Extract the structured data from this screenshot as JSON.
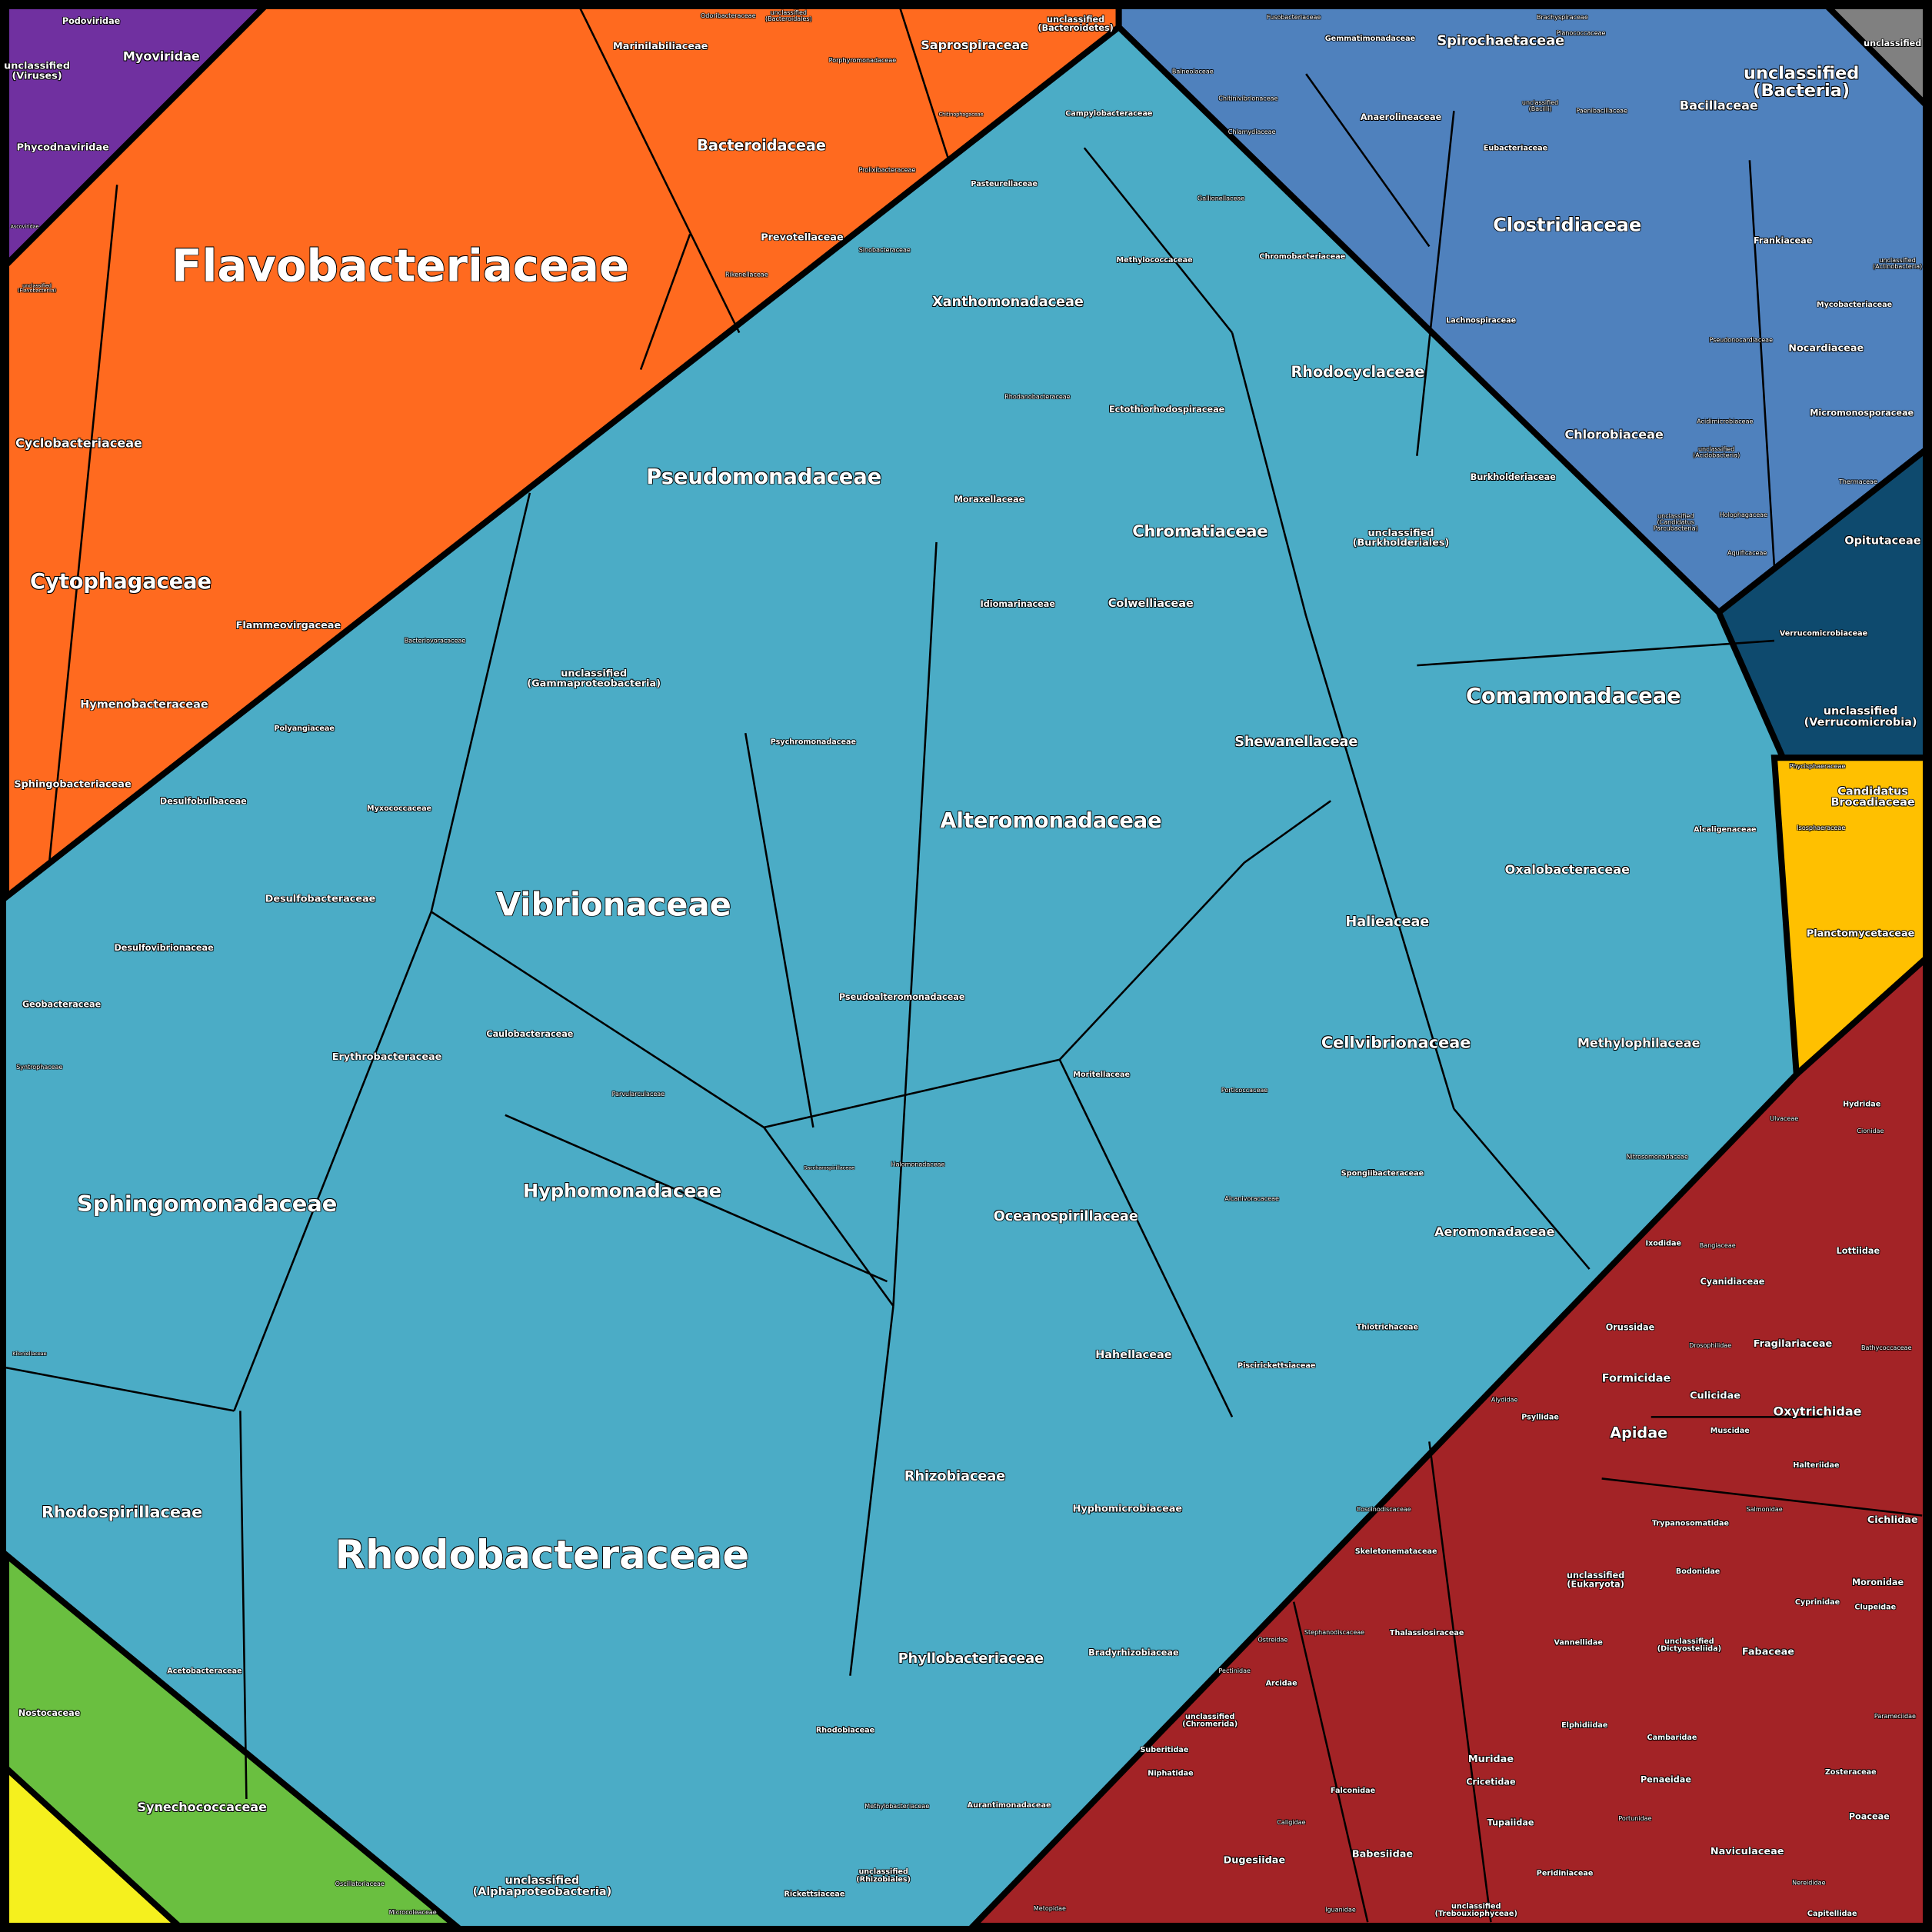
{
  "chart_data": {
    "type": "voronoi-treemap",
    "groups": [
      {
        "color": "#7030a0",
        "labels": [
          "Podoviridae",
          "Myoviridae",
          "unclassified\n(Viruses)",
          "Phycodnaviridae",
          "Ascoviridae"
        ]
      },
      {
        "color": "#ff6a1f",
        "labels": [
          "Flavobacteriaceae",
          "Cyclobacteriaceae",
          "Cytophagaceae",
          "Flammeovirgaceae",
          "Hymenobacteraceae",
          "Sphingobacteriaceae",
          "Marinilabiliaceae",
          "Odoribacteraceae",
          "unclassified\n(Bacteroidales)",
          "Bacteroidaceae",
          "Porphyromonadaceae",
          "Saprospiraceae",
          "unclassified\n(Bacteroidetes)",
          "Chitinophagaceae",
          "Prolixibacteraceae",
          "Prevotellaceae",
          "Rikenellaceae",
          "unclassified\n(Flavobacteriia)"
        ]
      },
      {
        "color": "#4f81bd",
        "labels": [
          "Fusobacteriaceae",
          "Gemmatimonadaceae",
          "Spirochaetaceae",
          "Brachyspiraceae",
          "Planococcaceae",
          "unclassified\n(Bacteria)",
          "Bacillaceae",
          "Paenibacillaceae",
          "unclassified\n(Bacilli)",
          "Anaerolineaceae",
          "Eubacteriaceae",
          "Clostridiaceae",
          "Lachnospiraceae",
          "Frankiaceae",
          "Mycobacteriaceae",
          "Nocardiaceae",
          "Pseudonocardiaceae",
          "Micromonosporaceae",
          "Chlorobiaceae",
          "Acidimicrobiaceae",
          "unclassified\n(Acidobacteria)",
          "Thermaceae",
          "Holophagaceae",
          "Aquificaceae",
          "unclassified\n(Candidatus\nParcubacteria)",
          "Chlamydiaceae",
          "Balneolaceae",
          "Chitinivibrionaceae",
          "unclassified\n(Actinobacteria)"
        ]
      },
      {
        "color": "#808080",
        "labels": [
          "unclassified"
        ]
      },
      {
        "color": "#0e4a6e",
        "labels": [
          "Opitutaceae",
          "Verrucomicrobiaceae",
          "unclassified\n(Verrucomicrobia)"
        ]
      },
      {
        "color": "#ffc000",
        "labels": [
          "Candidatus\nBrocadiaceae",
          "Planctomycetaceae",
          "Phycisphaeraceae",
          "Isosphaeraceae"
        ]
      },
      {
        "color": "#4bacc6",
        "labels": [
          "Rhodobacteraceae",
          "Vibrionaceae",
          "Pseudomonadaceae",
          "Alteromonadaceae",
          "Comamonadaceae",
          "Sphingomonadaceae",
          "Hyphomonadaceae",
          "Rhodospirillaceae",
          "Phyllobacteriaceae",
          "Rhizobiaceae",
          "Xanthomonadaceae",
          "Rhodocyclaceae",
          "Chromatiaceae",
          "Cellvibrionaceae",
          "Shewanellaceae",
          "Oceanospirillaceae",
          "Aeromonadaceae",
          "Methylophilaceae",
          "Oxalobacteraceae",
          "Halieaceae",
          "Colwelliaceae",
          "Hahellaceae",
          "Desulfobacteraceae",
          "Desulfovibrionaceae",
          "Desulfobulbaceae",
          "Geobacteraceae",
          "Erythrobacteraceae",
          "Caulobacteraceae",
          "unclassified\n(Gammaproteobacteria)",
          "unclassified\n(Burkholderiales)",
          "Burkholderiaceae",
          "Moraxellaceae",
          "Idiomarinaceae",
          "Ectothiorhodospiraceae",
          "Methylococcaceae",
          "Chromobacteriaceae",
          "Campylobacteraceae",
          "Pseudoalteromonadaceae",
          "Psychromonadaceae",
          "Moritellaceae",
          "Alcanivoracaceae",
          "Spongiibacteraceae",
          "Nitrosomonadaceae",
          "Thiotrichaceae",
          "Piscirickettsiaceae",
          "Hyphomicrobiaceae",
          "Bradyrhizobiaceae",
          "Acetobacteraceae",
          "Rhodobiaceae",
          "Methylobacteriaceae",
          "Aurantimonadaceae",
          "unclassified\n(Alphaproteobacteria)",
          "unclassified\n(Rhizobiales)",
          "Rickettsiaceae",
          "Alcaligenaceae",
          "Halomonadaceae",
          "Saccharospirillaceae",
          "Porticoccaceae",
          "Bacteriovoracaceae",
          "Polyangiaceae",
          "Myxococcaceae",
          "Syntrophaceae",
          "Kiloniellaceae",
          "Pasteurellaceae",
          "Sinobacteraceae",
          "Rhodanobacteraceae",
          "Parvularculaceae",
          "Gallionellaceae"
        ]
      },
      {
        "color": "#6abf40",
        "labels": [
          "Synechococcaceae",
          "Nostocaceae",
          "Oscillatoriaceae",
          "Microcoleaceae"
        ]
      },
      {
        "color": "#f5f01e",
        "labels": []
      },
      {
        "color": "#a32326",
        "labels": [
          "Apidae",
          "Oxytrichidae",
          "Formicidae",
          "Culicidae",
          "Fragilariaceae",
          "Cichlidae",
          "unclassified\n(Eukaryota)",
          "unclassified\n(Dictyosteliida)",
          "Skeletonemataceae",
          "Thalassiosiraceae",
          "Coscinodiscaceae",
          "Naviculaceae",
          "Babesiidae",
          "Dugesiidae",
          "Muridae",
          "Cricetidae",
          "Tupaiidae",
          "Penaeidae",
          "Peridiniaceae",
          "Fabaceae",
          "Moronidae",
          "Clupeidae",
          "Cyprinidae",
          "Lottiidae",
          "Ixodidae",
          "Bangiaceae",
          "Cyanidiaceae",
          "Orussidae",
          "Bathycoccaceae",
          "Hydridae",
          "Ulvaceae",
          "Cionidae",
          "Halteriidae",
          "Trypanosomatidae",
          "Bodonidae",
          "Vannellidae",
          "Elphidiidae",
          "Cambaridae",
          "Portunidae",
          "Zosteraceae",
          "Poaceae",
          "Capitellidae",
          "Nereididae",
          "Parameciidae",
          "Falconidae",
          "Caligidae",
          "Iguanidae",
          "Metopidae",
          "Arcidae",
          "Suberitidae",
          "Niphatidae",
          "unclassified\n(Chromerida)",
          "Drosophilidae",
          "Muscidae",
          "Psyllidae",
          "Alydidae",
          "Salmonidae",
          "unclassified\n(Trebouxiophyceae)",
          "Pectinidae",
          "Ostreidae",
          "Stephanodiscaceae"
        ]
      }
    ]
  }
}
